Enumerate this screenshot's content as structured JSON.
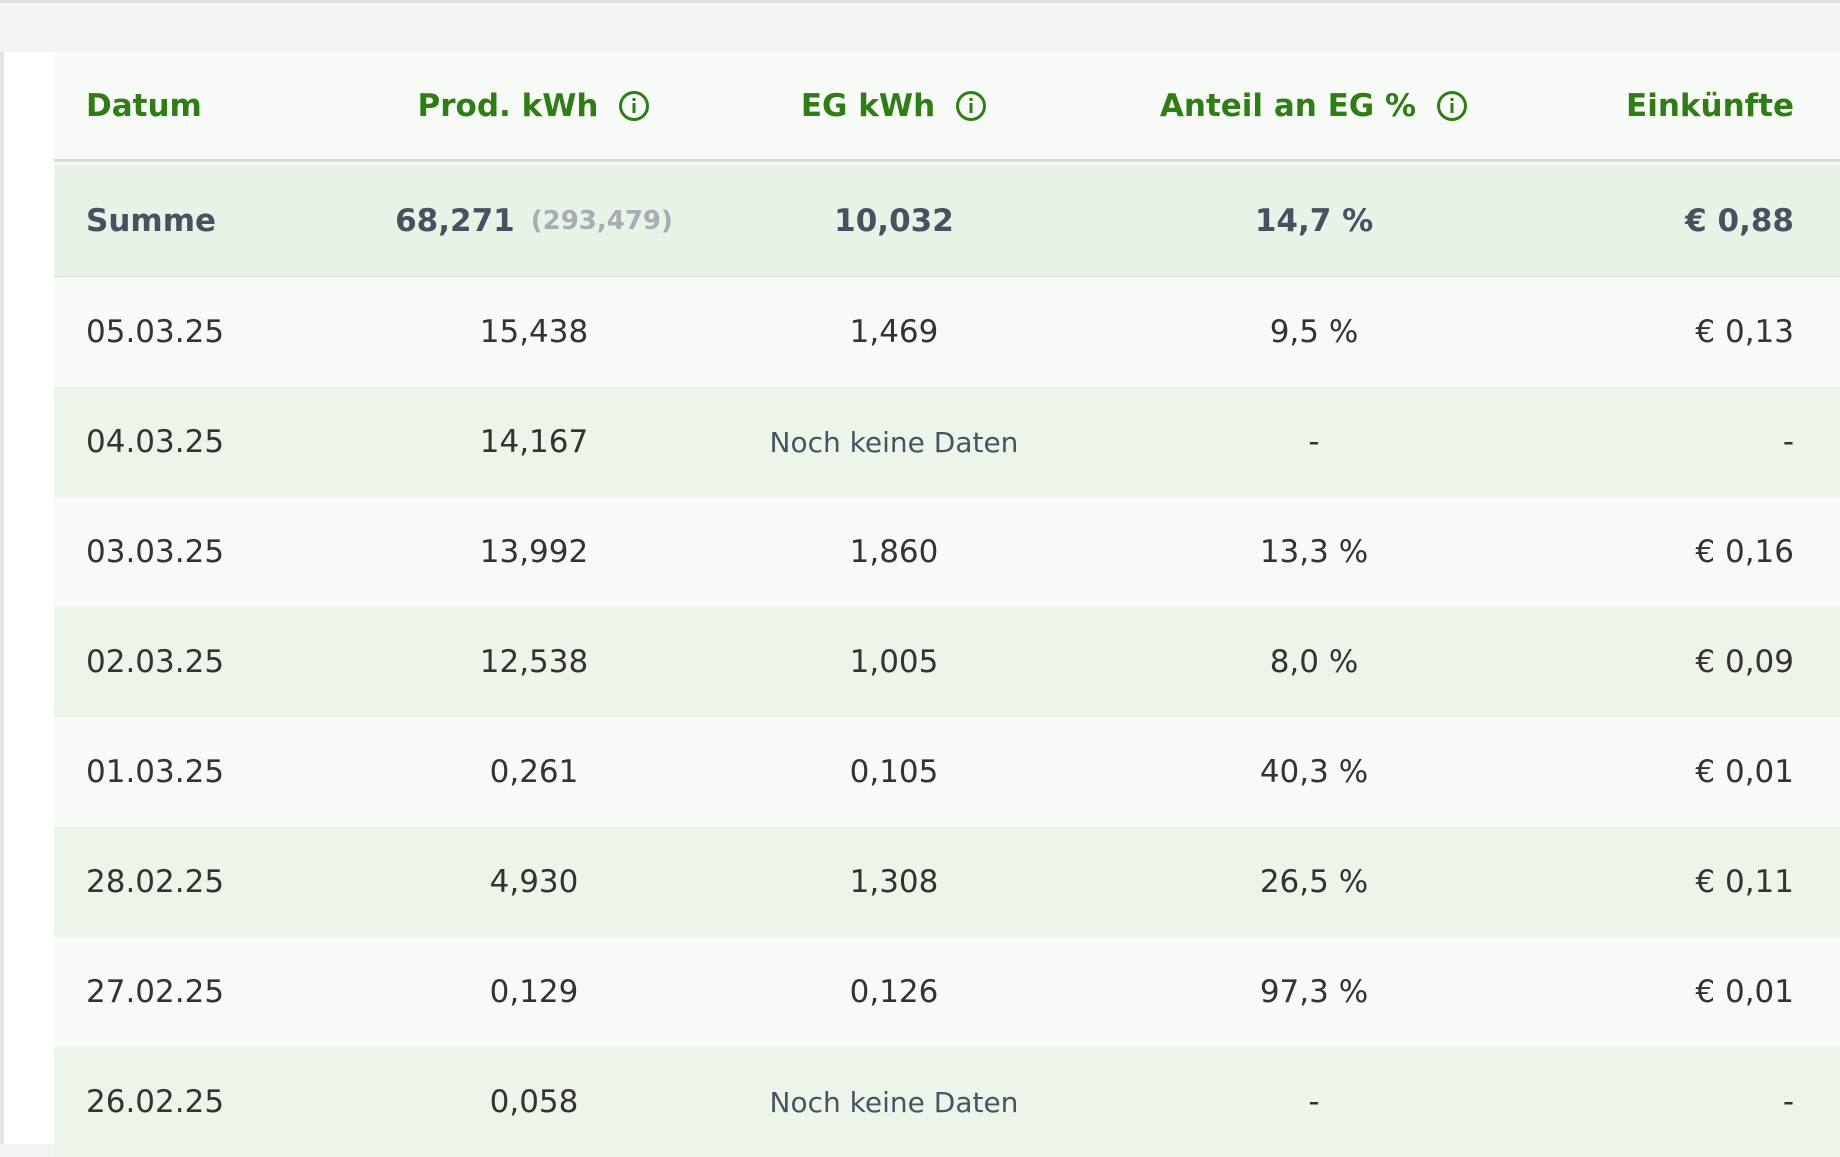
{
  "table": {
    "headers": {
      "date": "Datum",
      "prod": "Prod. kWh",
      "eg": "EG kWh",
      "share": "Anteil an EG %",
      "income": "Einkünfte"
    },
    "sum": {
      "label": "Summe",
      "prod": "68,271",
      "prod_total": "(293,479)",
      "eg": "10,032",
      "share": "14,7 %",
      "income": "€ 0,88"
    },
    "rows": [
      {
        "date": "05.03.25",
        "prod": "15,438",
        "eg": "1,469",
        "share": "9,5 %",
        "income": "€ 0,13"
      },
      {
        "date": "04.03.25",
        "prod": "14,167",
        "eg": "Noch keine Daten",
        "share": "-",
        "income": "-"
      },
      {
        "date": "03.03.25",
        "prod": "13,992",
        "eg": "1,860",
        "share": "13,3 %",
        "income": "€ 0,16"
      },
      {
        "date": "02.03.25",
        "prod": "12,538",
        "eg": "1,005",
        "share": "8,0 %",
        "income": "€ 0,09"
      },
      {
        "date": "01.03.25",
        "prod": "0,261",
        "eg": "0,105",
        "share": "40,3 %",
        "income": "€ 0,01"
      },
      {
        "date": "28.02.25",
        "prod": "4,930",
        "eg": "1,308",
        "share": "26,5 %",
        "income": "€ 0,11"
      },
      {
        "date": "27.02.25",
        "prod": "0,129",
        "eg": "0,126",
        "share": "97,3 %",
        "income": "€ 0,01"
      },
      {
        "date": "26.02.25",
        "prod": "0,058",
        "eg": "Noch keine Daten",
        "share": "-",
        "income": "-"
      }
    ]
  },
  "colors": {
    "header_text": "#2f7d14",
    "row_alt": "#edf5eb",
    "row_plain": "#f7faf6",
    "sum_bg": "#e9f2e7"
  },
  "icons": {
    "info": "info-circle-icon"
  }
}
